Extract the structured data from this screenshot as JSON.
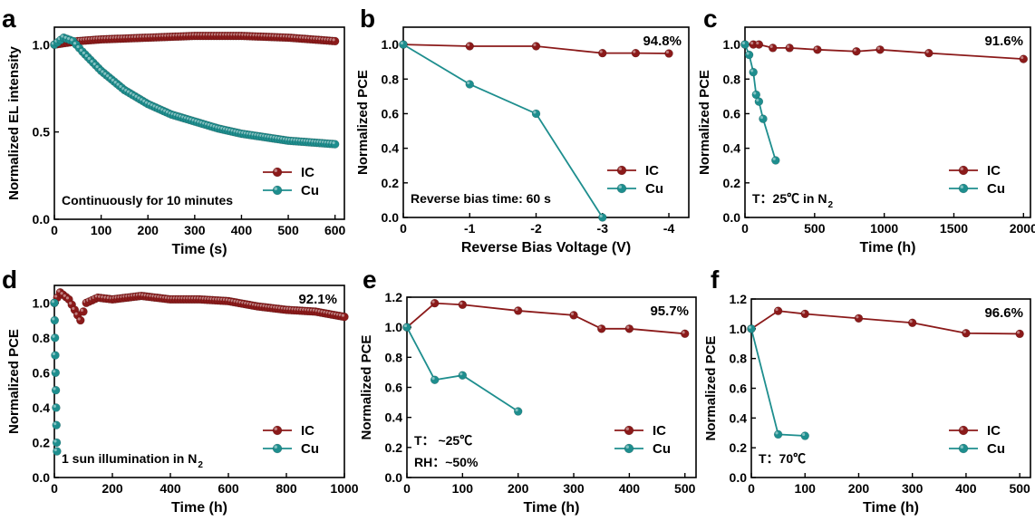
{
  "colors": {
    "IC": "#8B1A1A",
    "Cu": "#1E8E8E"
  },
  "chart_data": [
    {
      "panel": "a",
      "type": "scatter",
      "xlabel": "Time (s)",
      "ylabel": "Normalized EL intensity",
      "xlim": [
        0,
        620
      ],
      "ylim": [
        0,
        1.1
      ],
      "xticks": [
        0,
        100,
        200,
        300,
        400,
        500,
        600
      ],
      "yticks": [
        {
          "v": 0,
          "t": "0.0"
        },
        {
          "v": 0.5,
          "t": "0.5"
        },
        {
          "v": 1,
          "t": "1.0"
        }
      ],
      "annotation": "Continuously for 10 minutes",
      "legend": {
        "pos": "bottom-right",
        "items": [
          "IC",
          "Cu"
        ]
      },
      "series": [
        {
          "name": "IC",
          "values": [
            [
              0,
              1.0
            ],
            [
              50,
              1.02
            ],
            [
              100,
              1.03
            ],
            [
              200,
              1.04
            ],
            [
              300,
              1.05
            ],
            [
              400,
              1.05
            ],
            [
              500,
              1.04
            ],
            [
              600,
              1.02
            ]
          ]
        },
        {
          "name": "Cu",
          "values": [
            [
              0,
              1.0
            ],
            [
              20,
              1.04
            ],
            [
              40,
              1.02
            ],
            [
              60,
              0.96
            ],
            [
              100,
              0.85
            ],
            [
              150,
              0.74
            ],
            [
              200,
              0.66
            ],
            [
              250,
              0.6
            ],
            [
              300,
              0.56
            ],
            [
              350,
              0.52
            ],
            [
              400,
              0.49
            ],
            [
              450,
              0.47
            ],
            [
              500,
              0.45
            ],
            [
              550,
              0.44
            ],
            [
              600,
              0.43
            ]
          ]
        }
      ]
    },
    {
      "panel": "b",
      "type": "line",
      "xlabel": "Reverse Bias Voltage (V)",
      "ylabel": "Normalized PCE",
      "xlim": [
        0,
        4.3
      ],
      "ylim": [
        0,
        1.1
      ],
      "xticks": [
        {
          "v": 0,
          "t": "0"
        },
        {
          "v": 1,
          "t": "-1"
        },
        {
          "v": 2,
          "t": "-2"
        },
        {
          "v": 3,
          "t": "-3"
        },
        {
          "v": 4,
          "t": "-4"
        }
      ],
      "yticks": [
        {
          "v": 0,
          "t": "0.0"
        },
        {
          "v": 0.2,
          "t": "0.2"
        },
        {
          "v": 0.4,
          "t": "0.4"
        },
        {
          "v": 0.6,
          "t": "0.6"
        },
        {
          "v": 0.8,
          "t": "0.8"
        },
        {
          "v": 1,
          "t": "1.0"
        }
      ],
      "annotation": "Reverse bias time: 60 s",
      "percent": "94.8%",
      "legend": {
        "pos": "bottom-right",
        "items": [
          "IC",
          "Cu"
        ]
      },
      "series": [
        {
          "name": "IC",
          "values": [
            [
              0,
              1.0
            ],
            [
              1,
              0.99
            ],
            [
              2,
              0.99
            ],
            [
              3,
              0.95
            ],
            [
              3.5,
              0.95
            ],
            [
              4,
              0.948
            ]
          ]
        },
        {
          "name": "Cu",
          "values": [
            [
              0,
              1.0
            ],
            [
              1,
              0.77
            ],
            [
              2,
              0.6
            ],
            [
              3,
              0.0
            ]
          ]
        }
      ]
    },
    {
      "panel": "c",
      "type": "line",
      "xlabel": "Time (h)",
      "ylabel": "Normalized PCE",
      "xlim": [
        0,
        2050
      ],
      "ylim": [
        0,
        1.1
      ],
      "xticks": [
        0,
        500,
        1000,
        1500,
        2000
      ],
      "yticks": [
        {
          "v": 0,
          "t": "0.0"
        },
        {
          "v": 0.2,
          "t": "0.2"
        },
        {
          "v": 0.4,
          "t": "0.4"
        },
        {
          "v": 0.6,
          "t": "0.6"
        },
        {
          "v": 0.8,
          "t": "0.8"
        },
        {
          "v": 1,
          "t": "1.0"
        }
      ],
      "annotation": "T：25℃ in N",
      "annotation_sub": "2",
      "percent": "91.6%",
      "legend": {
        "pos": "bottom-right",
        "items": [
          "IC",
          "Cu"
        ]
      },
      "series": [
        {
          "name": "IC",
          "values": [
            [
              0,
              1.0
            ],
            [
              60,
              1.0
            ],
            [
              100,
              1.0
            ],
            [
              200,
              0.98
            ],
            [
              320,
              0.98
            ],
            [
              520,
              0.97
            ],
            [
              800,
              0.96
            ],
            [
              970,
              0.97
            ],
            [
              1320,
              0.95
            ],
            [
              2000,
              0.916
            ]
          ]
        },
        {
          "name": "Cu",
          "values": [
            [
              0,
              1.0
            ],
            [
              30,
              0.94
            ],
            [
              60,
              0.84
            ],
            [
              80,
              0.71
            ],
            [
              100,
              0.67
            ],
            [
              130,
              0.57
            ],
            [
              220,
              0.33
            ]
          ]
        }
      ]
    },
    {
      "panel": "d",
      "type": "scatter",
      "xlabel": "Time (h)",
      "ylabel": "Normalized PCE",
      "xlim": [
        0,
        1000
      ],
      "ylim": [
        0,
        1.1
      ],
      "xticks": [
        0,
        200,
        400,
        600,
        800,
        1000
      ],
      "yticks": [
        {
          "v": 0,
          "t": "0.0"
        },
        {
          "v": 0.2,
          "t": "0.2"
        },
        {
          "v": 0.4,
          "t": "0.4"
        },
        {
          "v": 0.6,
          "t": "0.6"
        },
        {
          "v": 0.8,
          "t": "0.8"
        },
        {
          "v": 1,
          "t": "1.0"
        }
      ],
      "annotation": "1 sun illumination in N",
      "annotation_sub": "2",
      "percent": "92.1%",
      "legend": {
        "pos": "bottom-right",
        "items": [
          "IC",
          "Cu"
        ]
      },
      "series": [
        {
          "name": "IC",
          "values": [
            [
              0,
              1.0
            ],
            [
              20,
              1.06
            ],
            [
              50,
              1.02
            ],
            [
              70,
              0.96
            ],
            [
              90,
              0.9
            ],
            [
              110,
              1.0
            ],
            [
              150,
              1.03
            ],
            [
              200,
              1.02
            ],
            [
              300,
              1.04
            ],
            [
              400,
              1.02
            ],
            [
              500,
              1.02
            ],
            [
              600,
              1.01
            ],
            [
              700,
              0.98
            ],
            [
              800,
              0.96
            ],
            [
              900,
              0.95
            ],
            [
              1000,
              0.92
            ]
          ]
        },
        {
          "name": "Cu",
          "values": [
            [
              0,
              1.0
            ],
            [
              1,
              0.9
            ],
            [
              2,
              0.8
            ],
            [
              3,
              0.7
            ],
            [
              4,
              0.6
            ],
            [
              5,
              0.5
            ],
            [
              6,
              0.4
            ],
            [
              7,
              0.3
            ],
            [
              8,
              0.2
            ],
            [
              9,
              0.15
            ]
          ]
        }
      ]
    },
    {
      "panel": "e",
      "type": "line",
      "xlabel": "Time (h)",
      "ylabel": "Normalized PCE",
      "xlim": [
        0,
        520
      ],
      "ylim": [
        0,
        1.2
      ],
      "xticks": [
        0,
        100,
        200,
        300,
        400,
        500
      ],
      "yticks": [
        {
          "v": 0,
          "t": "0.0"
        },
        {
          "v": 0.2,
          "t": "0.2"
        },
        {
          "v": 0.4,
          "t": "0.4"
        },
        {
          "v": 0.6,
          "t": "0.6"
        },
        {
          "v": 0.8,
          "t": "0.8"
        },
        {
          "v": 1,
          "t": "1.0"
        },
        {
          "v": 1.2,
          "t": "1.2"
        }
      ],
      "annotation": "T：    ~25℃",
      "annotation2": "RH：~50%",
      "percent": "95.7%",
      "legend": {
        "pos": "bottom-right",
        "items": [
          "IC",
          "Cu"
        ]
      },
      "series": [
        {
          "name": "IC",
          "values": [
            [
              0,
              1.0
            ],
            [
              50,
              1.16
            ],
            [
              100,
              1.15
            ],
            [
              200,
              1.11
            ],
            [
              300,
              1.08
            ],
            [
              350,
              0.99
            ],
            [
              400,
              0.99
            ],
            [
              500,
              0.957
            ]
          ]
        },
        {
          "name": "Cu",
          "values": [
            [
              0,
              1.0
            ],
            [
              50,
              0.65
            ],
            [
              100,
              0.68
            ],
            [
              200,
              0.44
            ]
          ]
        }
      ]
    },
    {
      "panel": "f",
      "type": "line",
      "xlabel": "Time (h)",
      "ylabel": "Normalized PCE",
      "xlim": [
        0,
        520
      ],
      "ylim": [
        0,
        1.2
      ],
      "xticks": [
        0,
        100,
        200,
        300,
        400,
        500
      ],
      "yticks": [
        {
          "v": 0,
          "t": "0.0"
        },
        {
          "v": 0.2,
          "t": "0.2"
        },
        {
          "v": 0.4,
          "t": "0.4"
        },
        {
          "v": 0.6,
          "t": "0.6"
        },
        {
          "v": 0.8,
          "t": "0.8"
        },
        {
          "v": 1,
          "t": "1.0"
        },
        {
          "v": 1.2,
          "t": "1.2"
        }
      ],
      "annotation": "T：70℃",
      "percent": "96.6%",
      "legend": {
        "pos": "bottom-right",
        "items": [
          "IC",
          "Cu"
        ]
      },
      "series": [
        {
          "name": "IC",
          "values": [
            [
              0,
              1.0
            ],
            [
              50,
              1.12
            ],
            [
              100,
              1.1
            ],
            [
              200,
              1.07
            ],
            [
              300,
              1.04
            ],
            [
              400,
              0.97
            ],
            [
              500,
              0.966
            ]
          ]
        },
        {
          "name": "Cu",
          "values": [
            [
              0,
              1.0
            ],
            [
              50,
              0.29
            ],
            [
              100,
              0.28
            ]
          ]
        }
      ]
    }
  ]
}
